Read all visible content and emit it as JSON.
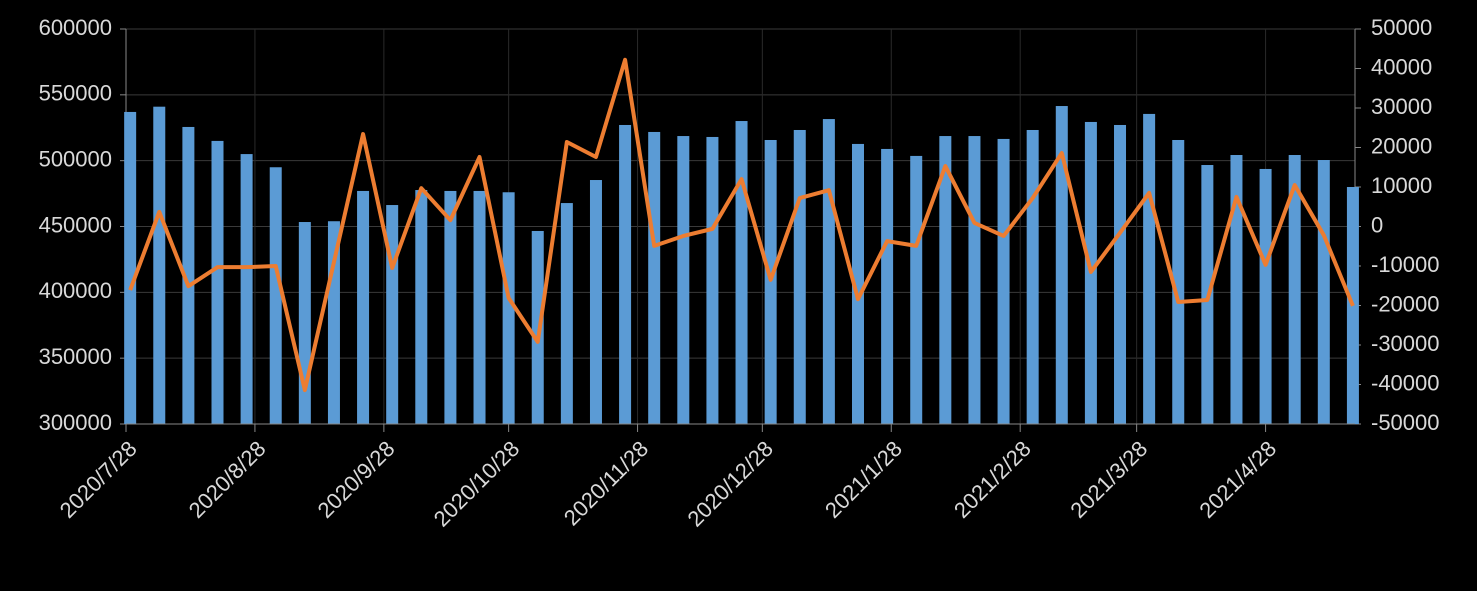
{
  "chart_data": {
    "type": "bar_line",
    "x": [
      "2020/7/28",
      "2020/8/4",
      "2020/8/11",
      "2020/8/18",
      "2020/8/25",
      "2020/9/1",
      "2020/9/8",
      "2020/9/15",
      "2020/9/22",
      "2020/9/29",
      "2020/10/6",
      "2020/10/13",
      "2020/10/20",
      "2020/10/27",
      "2020/11/3",
      "2020/11/10",
      "2020/11/17",
      "2020/11/24",
      "2020/12/1",
      "2020/12/8",
      "2020/12/15",
      "2020/12/22",
      "2020/12/29",
      "2021/1/5",
      "2021/1/12",
      "2021/1/19",
      "2021/1/26",
      "2021/2/2",
      "2021/2/9",
      "2021/2/16",
      "2021/2/23",
      "2021/3/2",
      "2021/3/9",
      "2021/3/16",
      "2021/3/23",
      "2021/3/30",
      "2021/4/6",
      "2021/4/13",
      "2021/4/20",
      "2021/4/27",
      "2021/5/4",
      "2021/5/11",
      "2021/5/18"
    ],
    "series": [
      {
        "type": "bar",
        "color": "#5b9bd5",
        "values": [
          537000,
          541000,
          525600,
          515000,
          505000,
          495000,
          453400,
          454000,
          477000,
          466300,
          477700,
          477000,
          477000,
          476000,
          446600,
          467800,
          485300,
          527100,
          521800,
          518700,
          518000,
          530100,
          515700,
          523300,
          531600,
          512700,
          508900,
          503600,
          518700,
          518700,
          516500,
          523300,
          541500,
          529400,
          527100,
          535500,
          515700,
          496700,
          504300,
          493700,
          504300,
          500500,
          480000
        ]
      },
      {
        "type": "line",
        "color": "#ed7d31",
        "axis": "y2",
        "values": [
          -16100,
          3700,
          -15100,
          -10300,
          -10300,
          -10000,
          -41400,
          -9000,
          23400,
          -10500,
          9700,
          1600,
          17600,
          -18100,
          -29200,
          21400,
          17600,
          42200,
          -4900,
          -2400,
          -600,
          12000,
          -13500,
          7200,
          9200,
          -18400,
          -3700,
          -4900,
          15300,
          900,
          -2400,
          7200,
          18600,
          -11500,
          -1600,
          8500,
          -19100,
          -18600,
          7500,
          -9700,
          10500,
          -2200,
          -20100
        ]
      }
    ],
    "xlim": [
      "2020/7/28",
      "2021/5/18"
    ],
    "xticks": [
      "2020/7/28",
      "2020/8/28",
      "2020/9/28",
      "2020/10/28",
      "2020/11/28",
      "2020/12/28",
      "2021/1/28",
      "2021/2/28",
      "2021/3/28",
      "2021/4/28"
    ],
    "ylim": [
      300000,
      600000
    ],
    "yticks": [
      300000,
      350000,
      400000,
      450000,
      500000,
      550000,
      600000
    ],
    "y2lim": [
      -50000,
      50000
    ],
    "y2ticks": [
      -50000,
      -40000,
      -30000,
      -20000,
      -10000,
      0,
      10000,
      20000,
      30000,
      40000,
      50000
    ],
    "grid": true
  }
}
